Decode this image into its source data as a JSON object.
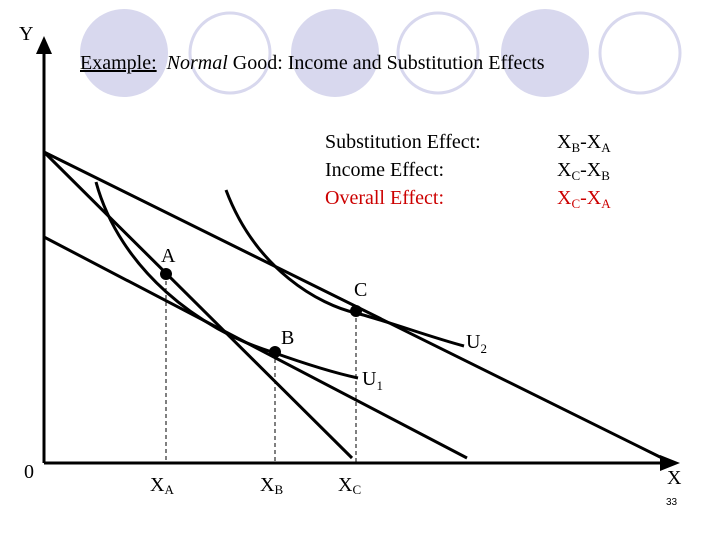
{
  "title": {
    "prefix": "Example:",
    "emphasis": "Normal",
    "rest": " Good: Income and Substitution Effects"
  },
  "effects": [
    {
      "label": "Substitution Effect:",
      "formula": {
        "a": "X",
        "a_sub": "B",
        "sep": "-X",
        "b_sub": "A"
      },
      "color": "#000000"
    },
    {
      "label": "Income Effect:",
      "formula": {
        "a": "X",
        "a_sub": "C",
        "sep": "-X",
        "b_sub": "B"
      },
      "color": "#000000"
    },
    {
      "label": "Overall Effect:",
      "formula": {
        "a": "X",
        "a_sub": "C",
        "sep": "-X",
        "b_sub": "A"
      },
      "color": "#cc0000"
    }
  ],
  "axes": {
    "y_label": "Y",
    "x_label": "X",
    "origin_label": "0"
  },
  "points": [
    {
      "label": "A"
    },
    {
      "label": "B"
    },
    {
      "label": "C"
    }
  ],
  "curves": {
    "u1": {
      "base": "U",
      "sub": "1"
    },
    "u2": {
      "base": "U",
      "sub": "2"
    }
  },
  "x_ticks": [
    {
      "base": "X",
      "sub": "A"
    },
    {
      "base": "X",
      "sub": "B"
    },
    {
      "base": "X",
      "sub": "C"
    }
  ],
  "page_number": "33",
  "colors": {
    "circle_fill": "#d8d8ee",
    "circle_stroke": "#d8d8ee",
    "ink": "#000000",
    "accent": "#cc0000"
  }
}
